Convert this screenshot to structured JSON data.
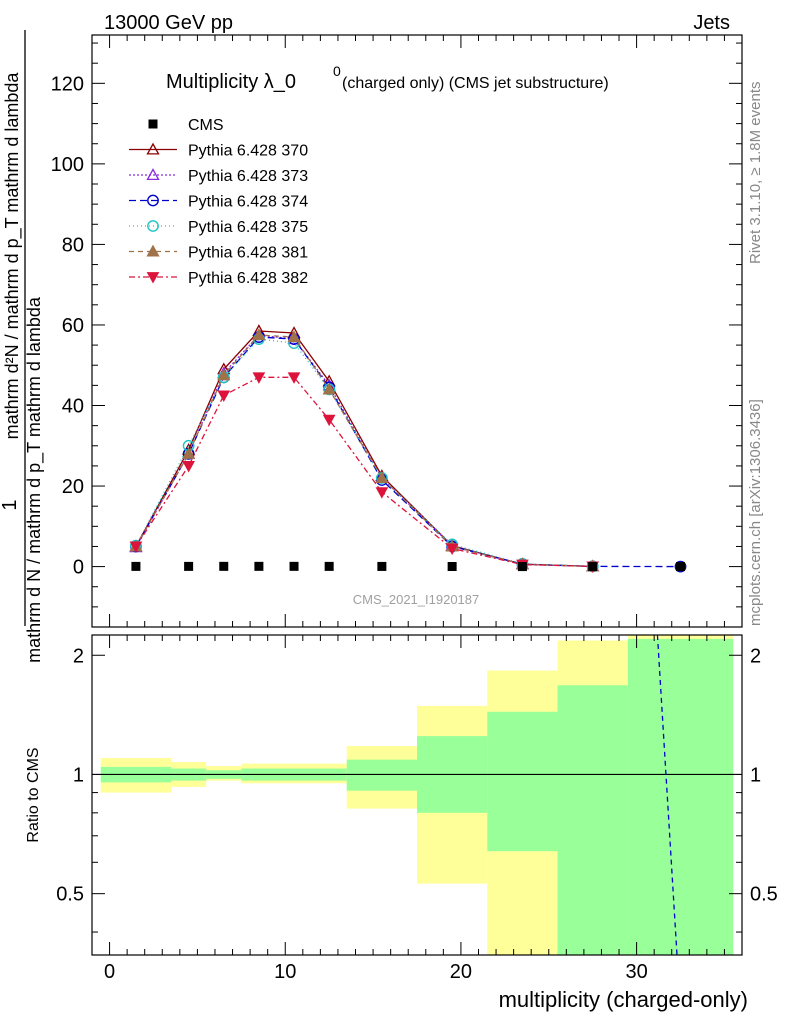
{
  "header": {
    "left": "13000 GeV pp",
    "right": "Jets"
  },
  "side_labels": {
    "rivet": "Rivet 3.1.10, ≥ 1.8M events",
    "mcplots": "mcplots.cern.ch [arXiv:1306.3436]"
  },
  "chart_data": [
    {
      "type": "line",
      "title": "Multiplicity λ_0",
      "title_sup": "0",
      "title_suffix": "(charged only) (CMS jet substructure)",
      "watermark": "CMS_2021_I1920187",
      "ylabel_top": "1",
      "ylabel_denominator": "mathrm d N / mathrm d p_T mathrm d lambda",
      "ylabel_numerator": "mathrm d²N / mathrm d p_T mathrm d lambda",
      "xlim": [
        -1,
        36
      ],
      "ylim": [
        -15,
        132
      ],
      "yticks": [
        0,
        20,
        40,
        60,
        80,
        100,
        120
      ],
      "legend_position": "top-left",
      "x": [
        1.5,
        4.5,
        6.5,
        8.5,
        10.5,
        12.5,
        15.5,
        19.5,
        23.5,
        27.5,
        32.5
      ],
      "series": [
        {
          "name": "CMS",
          "color": "#000000",
          "marker": "square",
          "dash": "none",
          "values": [
            0.05,
            0.05,
            0.06,
            0.06,
            0.06,
            0.05,
            0.04,
            0.02,
            0.005,
            0.002,
            0.0005
          ]
        },
        {
          "name": "Pythia 6.428 370",
          "color": "#8b0000",
          "marker": "triangle-open",
          "dash": "solid",
          "values": [
            5.0,
            29.0,
            49.0,
            58.5,
            58.0,
            46.0,
            22.5,
            5.2,
            0.6,
            0.05,
            null
          ]
        },
        {
          "name": "Pythia 6.428 373",
          "color": "#8a2be2",
          "marker": "triangle-open",
          "dash": "2,2",
          "values": [
            4.8,
            28.0,
            48.0,
            57.5,
            56.5,
            45.0,
            22.0,
            5.1,
            0.6,
            0.05,
            null
          ]
        },
        {
          "name": "Pythia 6.428 374",
          "color": "#0000cd",
          "marker": "circle-open",
          "dash": "7,4",
          "values": [
            5.0,
            28.0,
            47.0,
            57.0,
            56.5,
            44.5,
            21.5,
            5.0,
            0.6,
            0.05,
            0.0
          ]
        },
        {
          "name": "Pythia 6.428 375",
          "color": "#20c4c4",
          "marker": "circle-open",
          "dash": "1,3",
          "values": [
            5.2,
            30.0,
            47.0,
            56.5,
            55.5,
            44.0,
            22.0,
            5.5,
            0.7,
            0.05,
            null
          ]
        },
        {
          "name": "Pythia 6.428 381",
          "color": "#a0724a",
          "marker": "triangle-filled",
          "dash": "5,4",
          "values": [
            5.0,
            28.0,
            47.5,
            57.5,
            57.0,
            44.0,
            22.0,
            5.0,
            0.6,
            0.05,
            null
          ]
        },
        {
          "name": "Pythia 6.428 382",
          "color": "#dc143c",
          "marker": "triangle-down-filled",
          "dash": "6,3,2,3",
          "values": [
            5.0,
            25.0,
            42.5,
            47.0,
            47.0,
            36.5,
            18.5,
            4.5,
            0.5,
            0.05,
            null
          ]
        }
      ]
    },
    {
      "type": "area",
      "ylabel": "Ratio to CMS",
      "xlabel": "multiplicity (charged-only)",
      "xlim": [
        -1,
        36
      ],
      "ylim": [
        0.35,
        2.25
      ],
      "xticks": [
        0,
        10,
        20,
        30
      ],
      "yticks": [
        0.5,
        1,
        2
      ],
      "reference_line": 1,
      "bands": [
        {
          "xlo": -0.5,
          "xhi": 3.5,
          "inner": [
            0.955,
            1.045
          ],
          "outer": [
            0.9,
            1.1
          ]
        },
        {
          "xlo": 3.5,
          "xhi": 5.5,
          "inner": [
            0.965,
            1.035
          ],
          "outer": [
            0.93,
            1.075
          ]
        },
        {
          "xlo": 5.5,
          "xhi": 7.5,
          "inner": [
            0.975,
            1.025
          ],
          "outer": [
            0.965,
            1.05
          ]
        },
        {
          "xlo": 7.5,
          "xhi": 13.5,
          "inner": [
            0.965,
            1.035
          ],
          "outer": [
            0.95,
            1.065
          ]
        },
        {
          "xlo": 13.5,
          "xhi": 17.5,
          "inner": [
            0.91,
            1.09
          ],
          "outer": [
            0.82,
            1.18
          ]
        },
        {
          "xlo": 17.5,
          "xhi": 21.5,
          "inner": [
            0.8,
            1.25
          ],
          "outer": [
            0.53,
            1.49
          ]
        },
        {
          "xlo": 21.5,
          "xhi": 25.5,
          "inner": [
            0.64,
            1.44
          ],
          "outer": [
            0.3,
            1.83
          ]
        },
        {
          "xlo": 25.5,
          "xhi": 29.5,
          "inner": [
            0.3,
            1.68
          ],
          "outer": [
            0.3,
            2.18
          ]
        },
        {
          "xlo": 29.5,
          "xhi": 35.5,
          "inner": [
            0.3,
            2.2
          ],
          "outer": [
            0.3,
            2.6
          ]
        }
      ],
      "series": [
        {
          "name": "Pythia 6.428 374",
          "color": "#0000cd",
          "dash": "5,4",
          "points": [
            [
              31.1,
              2.6
            ],
            [
              32.3,
              0.35
            ]
          ]
        }
      ]
    }
  ]
}
